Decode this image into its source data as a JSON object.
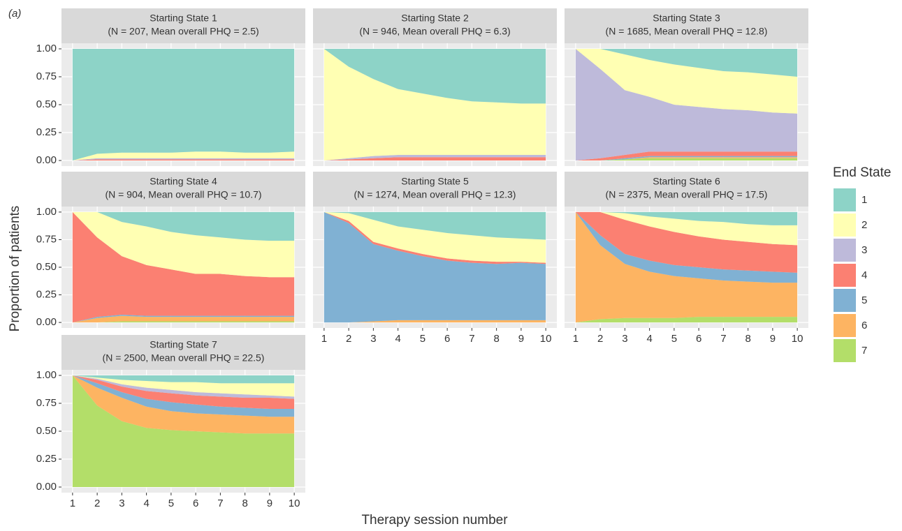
{
  "panel_label": "(a)",
  "xlabel": "Therapy session number",
  "ylabel": "Proportion of patients",
  "legend_title": "End State",
  "xlim": [
    0.55,
    10.45
  ],
  "xticks": [
    1,
    2,
    3,
    4,
    5,
    6,
    7,
    8,
    9,
    10
  ],
  "ylim": [
    -0.05,
    1.05
  ],
  "yticks": [
    {
      "value": 0,
      "label": "0.00"
    },
    {
      "value": 0.25,
      "label": "0.25"
    },
    {
      "value": 0.5,
      "label": "0.50"
    },
    {
      "value": 0.75,
      "label": "0.75"
    },
    {
      "value": 1,
      "label": "1.00"
    }
  ],
  "grid": true,
  "chart_data": [
    {
      "type": "stacked_area",
      "title": "Starting State  1",
      "subtitle": "(N = 207, Mean overall PHQ = 2.5)",
      "x": [
        1,
        2,
        3,
        4,
        5,
        6,
        7,
        8,
        9,
        10
      ],
      "series": [
        {
          "name": "1",
          "color": "#8dd3c7",
          "values": [
            1,
            0.94,
            0.93,
            0.93,
            0.93,
            0.92,
            0.92,
            0.93,
            0.93,
            0.92
          ]
        },
        {
          "name": "2",
          "color": "#ffffb3",
          "values": [
            0,
            0.04,
            0.05,
            0.05,
            0.05,
            0.06,
            0.06,
            0.05,
            0.05,
            0.06
          ]
        },
        {
          "name": "3",
          "color": "#bebada",
          "values": [
            0,
            0.01,
            0.01,
            0.01,
            0.01,
            0.01,
            0.01,
            0.01,
            0.01,
            0.01
          ]
        },
        {
          "name": "4",
          "color": "#fb8072",
          "values": [
            0,
            0.01,
            0.01,
            0.01,
            0.01,
            0.01,
            0.01,
            0.01,
            0.01,
            0.01
          ]
        },
        {
          "name": "5",
          "color": "#80b1d3",
          "values": [
            0,
            0,
            0,
            0,
            0,
            0,
            0,
            0,
            0,
            0
          ]
        },
        {
          "name": "6",
          "color": "#fdb462",
          "values": [
            0,
            0,
            0,
            0,
            0,
            0,
            0,
            0,
            0,
            0
          ]
        },
        {
          "name": "7",
          "color": "#b3de69",
          "values": [
            0,
            0,
            0,
            0,
            0,
            0,
            0,
            0,
            0,
            0
          ]
        }
      ]
    },
    {
      "type": "stacked_area",
      "title": "Starting State  2",
      "subtitle": "(N = 946, Mean overall PHQ = 6.3)",
      "x": [
        1,
        2,
        3,
        4,
        5,
        6,
        7,
        8,
        9,
        10
      ],
      "series": [
        {
          "name": "1",
          "color": "#8dd3c7",
          "values": [
            0,
            0.16,
            0.27,
            0.36,
            0.4,
            0.44,
            0.47,
            0.48,
            0.49,
            0.49
          ]
        },
        {
          "name": "2",
          "color": "#ffffb3",
          "values": [
            1,
            0.82,
            0.69,
            0.59,
            0.55,
            0.51,
            0.48,
            0.47,
            0.46,
            0.46
          ]
        },
        {
          "name": "3",
          "color": "#bebada",
          "values": [
            0,
            0.01,
            0.02,
            0.02,
            0.02,
            0.02,
            0.02,
            0.02,
            0.02,
            0.02
          ]
        },
        {
          "name": "4",
          "color": "#fb8072",
          "values": [
            0,
            0.01,
            0.02,
            0.03,
            0.03,
            0.03,
            0.03,
            0.03,
            0.03,
            0.03
          ]
        },
        {
          "name": "5",
          "color": "#80b1d3",
          "values": [
            0,
            0,
            0,
            0,
            0,
            0,
            0,
            0,
            0,
            0
          ]
        },
        {
          "name": "6",
          "color": "#fdb462",
          "values": [
            0,
            0,
            0,
            0,
            0,
            0,
            0,
            0,
            0,
            0
          ]
        },
        {
          "name": "7",
          "color": "#b3de69",
          "values": [
            0,
            0,
            0,
            0,
            0,
            0,
            0,
            0,
            0,
            0
          ]
        }
      ]
    },
    {
      "type": "stacked_area",
      "title": "Starting State  3",
      "subtitle": "(N = 1685, Mean overall PHQ = 12.8)",
      "x": [
        1,
        2,
        3,
        4,
        5,
        6,
        7,
        8,
        9,
        10
      ],
      "series": [
        {
          "name": "1",
          "color": "#8dd3c7",
          "values": [
            0,
            0,
            0.05,
            0.1,
            0.14,
            0.17,
            0.2,
            0.21,
            0.23,
            0.25
          ]
        },
        {
          "name": "2",
          "color": "#ffffb3",
          "values": [
            0,
            0.18,
            0.32,
            0.33,
            0.36,
            0.35,
            0.34,
            0.34,
            0.34,
            0.33
          ]
        },
        {
          "name": "3",
          "color": "#bebada",
          "values": [
            1,
            0.8,
            0.58,
            0.49,
            0.42,
            0.4,
            0.38,
            0.37,
            0.35,
            0.34
          ]
        },
        {
          "name": "4",
          "color": "#fb8072",
          "values": [
            0,
            0.02,
            0.03,
            0.04,
            0.04,
            0.04,
            0.04,
            0.04,
            0.04,
            0.04
          ]
        },
        {
          "name": "5",
          "color": "#80b1d3",
          "values": [
            0,
            0,
            0.01,
            0.01,
            0.01,
            0.01,
            0.01,
            0.01,
            0.01,
            0.01
          ]
        },
        {
          "name": "6",
          "color": "#fdb462",
          "values": [
            0,
            0,
            0,
            0.01,
            0.01,
            0.01,
            0.01,
            0.01,
            0.01,
            0.01
          ]
        },
        {
          "name": "7",
          "color": "#b3de69",
          "values": [
            0,
            0,
            0.01,
            0.02,
            0.02,
            0.02,
            0.02,
            0.02,
            0.02,
            0.02
          ]
        }
      ]
    },
    {
      "type": "stacked_area",
      "title": "Starting State  4",
      "subtitle": "(N = 904, Mean overall PHQ = 10.7)",
      "x": [
        1,
        2,
        3,
        4,
        5,
        6,
        7,
        8,
        9,
        10
      ],
      "series": [
        {
          "name": "1",
          "color": "#8dd3c7",
          "values": [
            0,
            0,
            0.09,
            0.13,
            0.18,
            0.21,
            0.23,
            0.25,
            0.26,
            0.26
          ]
        },
        {
          "name": "2",
          "color": "#ffffb3",
          "values": [
            0,
            0.23,
            0.31,
            0.35,
            0.34,
            0.35,
            0.33,
            0.33,
            0.33,
            0.33
          ]
        },
        {
          "name": "3",
          "color": "#bebada",
          "values": [
            0,
            0,
            0,
            0,
            0,
            0,
            0,
            0,
            0,
            0
          ]
        },
        {
          "name": "4",
          "color": "#fb8072",
          "values": [
            1,
            0.72,
            0.53,
            0.46,
            0.42,
            0.38,
            0.38,
            0.36,
            0.35,
            0.35
          ]
        },
        {
          "name": "5",
          "color": "#80b1d3",
          "values": [
            0,
            0.01,
            0.01,
            0.01,
            0.01,
            0.01,
            0.01,
            0.01,
            0.01,
            0.01
          ]
        },
        {
          "name": "6",
          "color": "#fdb462",
          "values": [
            0,
            0.04,
            0.05,
            0.04,
            0.04,
            0.04,
            0.04,
            0.04,
            0.04,
            0.04
          ]
        },
        {
          "name": "7",
          "color": "#b3de69",
          "values": [
            0,
            0,
            0.01,
            0.01,
            0.01,
            0.01,
            0.01,
            0.01,
            0.01,
            0.01
          ]
        }
      ]
    },
    {
      "type": "stacked_area",
      "title": "Starting State  5",
      "subtitle": "(N = 1274, Mean overall PHQ = 12.3)",
      "x": [
        1,
        2,
        3,
        4,
        5,
        6,
        7,
        8,
        9,
        10
      ],
      "series": [
        {
          "name": "1",
          "color": "#8dd3c7",
          "values": [
            0,
            0.01,
            0.07,
            0.13,
            0.16,
            0.19,
            0.21,
            0.23,
            0.24,
            0.25
          ]
        },
        {
          "name": "2",
          "color": "#ffffb3",
          "values": [
            0,
            0.07,
            0.2,
            0.2,
            0.22,
            0.23,
            0.23,
            0.22,
            0.21,
            0.21
          ]
        },
        {
          "name": "3",
          "color": "#bebada",
          "values": [
            0,
            0,
            0,
            0,
            0,
            0,
            0,
            0,
            0,
            0
          ]
        },
        {
          "name": "4",
          "color": "#fb8072",
          "values": [
            0,
            0.02,
            0.02,
            0.02,
            0.02,
            0.02,
            0.02,
            0.02,
            0.01,
            0.01
          ]
        },
        {
          "name": "5",
          "color": "#80b1d3",
          "values": [
            1,
            0.9,
            0.7,
            0.63,
            0.58,
            0.54,
            0.52,
            0.51,
            0.52,
            0.51
          ]
        },
        {
          "name": "6",
          "color": "#fdb462",
          "values": [
            0,
            0,
            0.01,
            0.02,
            0.02,
            0.02,
            0.02,
            0.02,
            0.02,
            0.02
          ]
        },
        {
          "name": "7",
          "color": "#b3de69",
          "values": [
            0,
            0,
            0,
            0,
            0,
            0,
            0,
            0,
            0,
            0
          ]
        }
      ]
    },
    {
      "type": "stacked_area",
      "title": "Starting State  6",
      "subtitle": "(N = 2375, Mean overall PHQ = 17.5)",
      "x": [
        1,
        2,
        3,
        4,
        5,
        6,
        7,
        8,
        9,
        10
      ],
      "series": [
        {
          "name": "1",
          "color": "#8dd3c7",
          "values": [
            0,
            0,
            0.01,
            0.04,
            0.06,
            0.08,
            0.09,
            0.11,
            0.12,
            0.12
          ]
        },
        {
          "name": "2",
          "color": "#ffffb3",
          "values": [
            0,
            0,
            0.06,
            0.09,
            0.12,
            0.14,
            0.16,
            0.16,
            0.17,
            0.18
          ]
        },
        {
          "name": "3",
          "color": "#bebada",
          "values": [
            0,
            0,
            0,
            0,
            0,
            0,
            0,
            0,
            0,
            0
          ]
        },
        {
          "name": "4",
          "color": "#fb8072",
          "values": [
            0,
            0.21,
            0.31,
            0.31,
            0.3,
            0.28,
            0.27,
            0.26,
            0.25,
            0.25
          ]
        },
        {
          "name": "5",
          "color": "#80b1d3",
          "values": [
            0,
            0.09,
            0.09,
            0.1,
            0.1,
            0.1,
            0.1,
            0.1,
            0.1,
            0.09
          ]
        },
        {
          "name": "6",
          "color": "#fdb462",
          "values": [
            1,
            0.67,
            0.49,
            0.42,
            0.38,
            0.35,
            0.33,
            0.32,
            0.31,
            0.31
          ]
        },
        {
          "name": "7",
          "color": "#b3de69",
          "values": [
            0,
            0.03,
            0.04,
            0.04,
            0.04,
            0.05,
            0.05,
            0.05,
            0.05,
            0.05
          ]
        }
      ]
    },
    {
      "type": "stacked_area",
      "title": "Starting State  7",
      "subtitle": "(N = 2500, Mean overall PHQ = 22.5)",
      "x": [
        1,
        2,
        3,
        4,
        5,
        6,
        7,
        8,
        9,
        10
      ],
      "series": [
        {
          "name": "1",
          "color": "#8dd3c7",
          "values": [
            0,
            0.02,
            0.04,
            0.05,
            0.06,
            0.06,
            0.07,
            0.07,
            0.07,
            0.07
          ]
        },
        {
          "name": "2",
          "color": "#ffffb3",
          "values": [
            0,
            0.01,
            0.04,
            0.06,
            0.07,
            0.09,
            0.09,
            0.1,
            0.11,
            0.12
          ]
        },
        {
          "name": "3",
          "color": "#bebada",
          "values": [
            0,
            0.01,
            0.02,
            0.03,
            0.03,
            0.03,
            0.03,
            0.03,
            0.02,
            0.02
          ]
        },
        {
          "name": "4",
          "color": "#fb8072",
          "values": [
            0,
            0.03,
            0.05,
            0.07,
            0.08,
            0.08,
            0.09,
            0.09,
            0.1,
            0.09
          ]
        },
        {
          "name": "5",
          "color": "#80b1d3",
          "values": [
            0,
            0.04,
            0.05,
            0.07,
            0.08,
            0.08,
            0.07,
            0.07,
            0.07,
            0.07
          ]
        },
        {
          "name": "6",
          "color": "#fdb462",
          "values": [
            0,
            0.16,
            0.21,
            0.19,
            0.17,
            0.16,
            0.16,
            0.16,
            0.15,
            0.15
          ]
        },
        {
          "name": "7",
          "color": "#b3de69",
          "values": [
            1,
            0.73,
            0.59,
            0.53,
            0.51,
            0.5,
            0.49,
            0.48,
            0.48,
            0.48
          ]
        }
      ]
    }
  ]
}
